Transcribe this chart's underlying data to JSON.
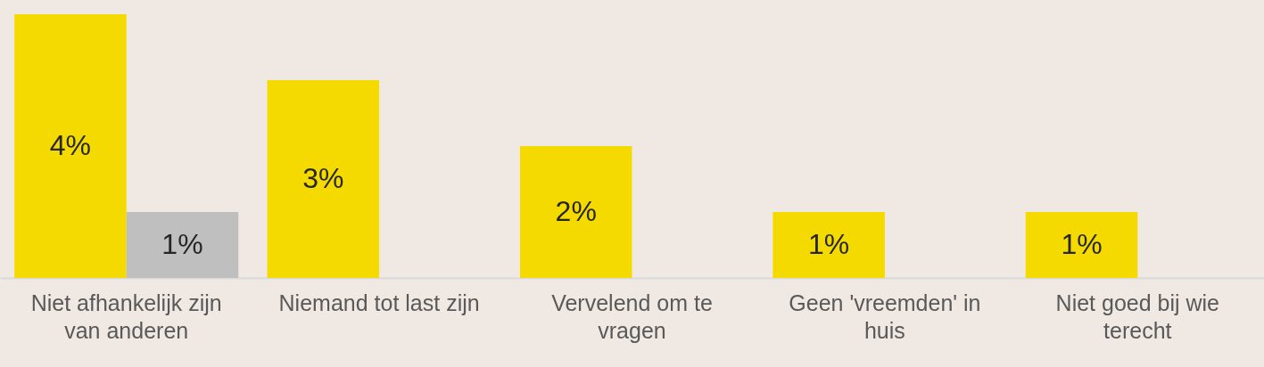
{
  "chart_data": {
    "type": "bar",
    "categories": [
      "Niet afhankelijk zijn van anderen",
      "Niemand tot last zijn",
      "Vervelend om te vragen",
      "Geen 'vreemden' in huis",
      "Niet goed bij wie terecht"
    ],
    "series": [
      {
        "color": "#f5da00",
        "values": [
          4,
          3,
          2,
          1,
          1
        ],
        "value_labels": [
          "4%",
          "3%",
          "2%",
          "1%",
          "1%"
        ]
      },
      {
        "color": "#bfbfbf",
        "values": [
          1,
          null,
          null,
          null,
          null
        ],
        "value_labels": [
          "1%",
          null,
          null,
          null,
          null
        ]
      }
    ]
  }
}
